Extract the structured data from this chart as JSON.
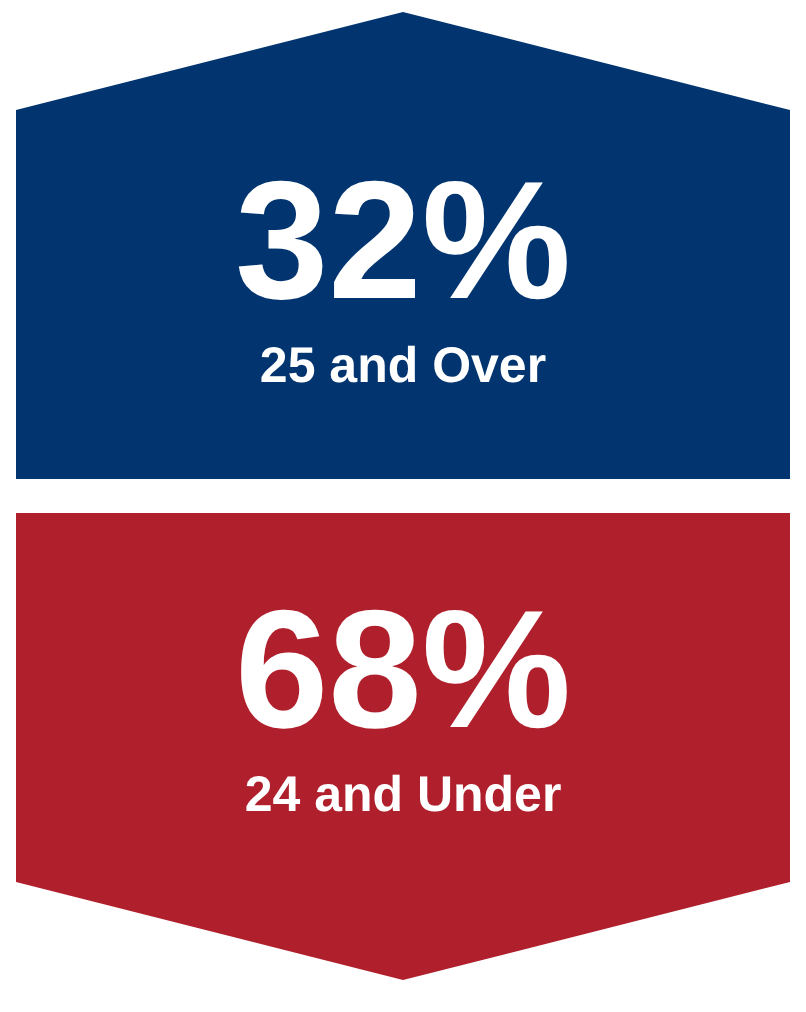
{
  "chart_data": {
    "type": "other",
    "categories": [
      "25 and Over",
      "24 and Under"
    ],
    "values": [
      32,
      68
    ],
    "value_labels": [
      "32%",
      "68%"
    ],
    "colors": [
      "#023570",
      "#b0202c"
    ]
  }
}
